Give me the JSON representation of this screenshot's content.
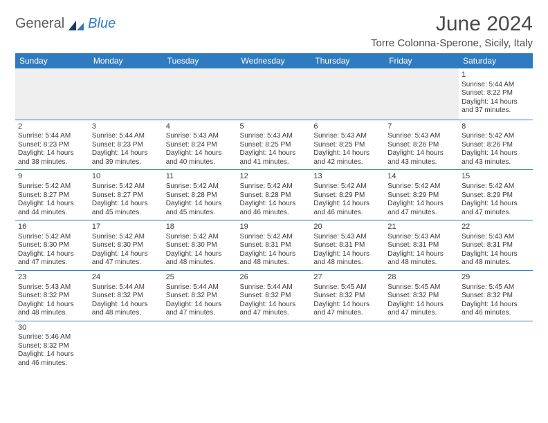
{
  "brand": {
    "part1": "General",
    "part2": "Blue",
    "accent_color": "#2f7bbf",
    "text_color": "#5a5a5a"
  },
  "header": {
    "title": "June 2024",
    "location": "Torre Colonna-Sperone, Sicily, Italy"
  },
  "calendar": {
    "header_bg": "#2f7bbf",
    "header_text_color": "#ffffff",
    "cell_border_color": "#2f7bbf",
    "blank_bg": "#efefef",
    "line_fontsize": 10,
    "daynum_fontsize": 11,
    "day_headers": [
      "Sunday",
      "Monday",
      "Tuesday",
      "Wednesday",
      "Thursday",
      "Friday",
      "Saturday"
    ],
    "weeks": [
      [
        null,
        null,
        null,
        null,
        null,
        null,
        {
          "n": "1",
          "sunrise": "Sunrise: 5:44 AM",
          "sunset": "Sunset: 8:22 PM",
          "day1": "Daylight: 14 hours",
          "day2": "and 37 minutes."
        }
      ],
      [
        {
          "n": "2",
          "sunrise": "Sunrise: 5:44 AM",
          "sunset": "Sunset: 8:23 PM",
          "day1": "Daylight: 14 hours",
          "day2": "and 38 minutes."
        },
        {
          "n": "3",
          "sunrise": "Sunrise: 5:44 AM",
          "sunset": "Sunset: 8:23 PM",
          "day1": "Daylight: 14 hours",
          "day2": "and 39 minutes."
        },
        {
          "n": "4",
          "sunrise": "Sunrise: 5:43 AM",
          "sunset": "Sunset: 8:24 PM",
          "day1": "Daylight: 14 hours",
          "day2": "and 40 minutes."
        },
        {
          "n": "5",
          "sunrise": "Sunrise: 5:43 AM",
          "sunset": "Sunset: 8:25 PM",
          "day1": "Daylight: 14 hours",
          "day2": "and 41 minutes."
        },
        {
          "n": "6",
          "sunrise": "Sunrise: 5:43 AM",
          "sunset": "Sunset: 8:25 PM",
          "day1": "Daylight: 14 hours",
          "day2": "and 42 minutes."
        },
        {
          "n": "7",
          "sunrise": "Sunrise: 5:43 AM",
          "sunset": "Sunset: 8:26 PM",
          "day1": "Daylight: 14 hours",
          "day2": "and 43 minutes."
        },
        {
          "n": "8",
          "sunrise": "Sunrise: 5:42 AM",
          "sunset": "Sunset: 8:26 PM",
          "day1": "Daylight: 14 hours",
          "day2": "and 43 minutes."
        }
      ],
      [
        {
          "n": "9",
          "sunrise": "Sunrise: 5:42 AM",
          "sunset": "Sunset: 8:27 PM",
          "day1": "Daylight: 14 hours",
          "day2": "and 44 minutes."
        },
        {
          "n": "10",
          "sunrise": "Sunrise: 5:42 AM",
          "sunset": "Sunset: 8:27 PM",
          "day1": "Daylight: 14 hours",
          "day2": "and 45 minutes."
        },
        {
          "n": "11",
          "sunrise": "Sunrise: 5:42 AM",
          "sunset": "Sunset: 8:28 PM",
          "day1": "Daylight: 14 hours",
          "day2": "and 45 minutes."
        },
        {
          "n": "12",
          "sunrise": "Sunrise: 5:42 AM",
          "sunset": "Sunset: 8:28 PM",
          "day1": "Daylight: 14 hours",
          "day2": "and 46 minutes."
        },
        {
          "n": "13",
          "sunrise": "Sunrise: 5:42 AM",
          "sunset": "Sunset: 8:29 PM",
          "day1": "Daylight: 14 hours",
          "day2": "and 46 minutes."
        },
        {
          "n": "14",
          "sunrise": "Sunrise: 5:42 AM",
          "sunset": "Sunset: 8:29 PM",
          "day1": "Daylight: 14 hours",
          "day2": "and 47 minutes."
        },
        {
          "n": "15",
          "sunrise": "Sunrise: 5:42 AM",
          "sunset": "Sunset: 8:29 PM",
          "day1": "Daylight: 14 hours",
          "day2": "and 47 minutes."
        }
      ],
      [
        {
          "n": "16",
          "sunrise": "Sunrise: 5:42 AM",
          "sunset": "Sunset: 8:30 PM",
          "day1": "Daylight: 14 hours",
          "day2": "and 47 minutes."
        },
        {
          "n": "17",
          "sunrise": "Sunrise: 5:42 AM",
          "sunset": "Sunset: 8:30 PM",
          "day1": "Daylight: 14 hours",
          "day2": "and 47 minutes."
        },
        {
          "n": "18",
          "sunrise": "Sunrise: 5:42 AM",
          "sunset": "Sunset: 8:30 PM",
          "day1": "Daylight: 14 hours",
          "day2": "and 48 minutes."
        },
        {
          "n": "19",
          "sunrise": "Sunrise: 5:42 AM",
          "sunset": "Sunset: 8:31 PM",
          "day1": "Daylight: 14 hours",
          "day2": "and 48 minutes."
        },
        {
          "n": "20",
          "sunrise": "Sunrise: 5:43 AM",
          "sunset": "Sunset: 8:31 PM",
          "day1": "Daylight: 14 hours",
          "day2": "and 48 minutes."
        },
        {
          "n": "21",
          "sunrise": "Sunrise: 5:43 AM",
          "sunset": "Sunset: 8:31 PM",
          "day1": "Daylight: 14 hours",
          "day2": "and 48 minutes."
        },
        {
          "n": "22",
          "sunrise": "Sunrise: 5:43 AM",
          "sunset": "Sunset: 8:31 PM",
          "day1": "Daylight: 14 hours",
          "day2": "and 48 minutes."
        }
      ],
      [
        {
          "n": "23",
          "sunrise": "Sunrise: 5:43 AM",
          "sunset": "Sunset: 8:32 PM",
          "day1": "Daylight: 14 hours",
          "day2": "and 48 minutes."
        },
        {
          "n": "24",
          "sunrise": "Sunrise: 5:44 AM",
          "sunset": "Sunset: 8:32 PM",
          "day1": "Daylight: 14 hours",
          "day2": "and 48 minutes."
        },
        {
          "n": "25",
          "sunrise": "Sunrise: 5:44 AM",
          "sunset": "Sunset: 8:32 PM",
          "day1": "Daylight: 14 hours",
          "day2": "and 47 minutes."
        },
        {
          "n": "26",
          "sunrise": "Sunrise: 5:44 AM",
          "sunset": "Sunset: 8:32 PM",
          "day1": "Daylight: 14 hours",
          "day2": "and 47 minutes."
        },
        {
          "n": "27",
          "sunrise": "Sunrise: 5:45 AM",
          "sunset": "Sunset: 8:32 PM",
          "day1": "Daylight: 14 hours",
          "day2": "and 47 minutes."
        },
        {
          "n": "28",
          "sunrise": "Sunrise: 5:45 AM",
          "sunset": "Sunset: 8:32 PM",
          "day1": "Daylight: 14 hours",
          "day2": "and 47 minutes."
        },
        {
          "n": "29",
          "sunrise": "Sunrise: 5:45 AM",
          "sunset": "Sunset: 8:32 PM",
          "day1": "Daylight: 14 hours",
          "day2": "and 46 minutes."
        }
      ],
      [
        {
          "n": "30",
          "sunrise": "Sunrise: 5:46 AM",
          "sunset": "Sunset: 8:32 PM",
          "day1": "Daylight: 14 hours",
          "day2": "and 46 minutes."
        },
        null,
        null,
        null,
        null,
        null,
        null
      ]
    ]
  }
}
